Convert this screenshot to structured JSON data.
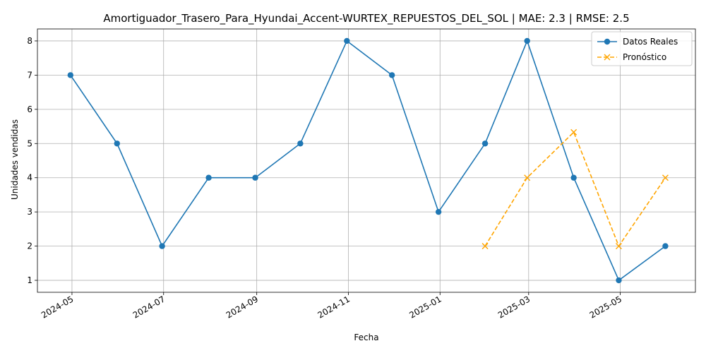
{
  "chart_data": {
    "type": "line",
    "title": "Amortiguador_Trasero_Para_Hyundai_Accent-WURTEX_REPUESTOS_DEL_SOL | MAE: 2.3 | RMSE: 2.5",
    "xlabel": "Fecha",
    "ylabel": "Unidades vendidas",
    "ylim": [
      0.65,
      8.35
    ],
    "xlim": [
      "2024-04-08",
      "2025-06-20"
    ],
    "grid": true,
    "legend_position": "top-right",
    "x_ticks": [
      "2024-05",
      "2024-07",
      "2024-09",
      "2024-11",
      "2025-01",
      "2025-03",
      "2025-05"
    ],
    "y_ticks": [
      1,
      2,
      3,
      4,
      5,
      6,
      7,
      8
    ],
    "series": [
      {
        "name": "Datos Reales",
        "color": "#1f77b4",
        "style": "solid",
        "marker": "circle",
        "x": [
          "2024-04-30",
          "2024-05-31",
          "2024-06-30",
          "2024-07-31",
          "2024-08-31",
          "2024-09-30",
          "2024-10-31",
          "2024-11-30",
          "2024-12-31",
          "2025-01-31",
          "2025-02-28",
          "2025-03-31",
          "2025-04-30",
          "2025-05-31"
        ],
        "values": [
          7,
          5,
          2,
          4,
          4,
          5,
          8,
          7,
          3,
          5,
          8,
          4,
          1,
          2
        ]
      },
      {
        "name": "Pronóstico",
        "color": "#ffa500",
        "style": "dashed",
        "marker": "x",
        "x": [
          "2025-01-31",
          "2025-02-28",
          "2025-03-31",
          "2025-04-30",
          "2025-05-31"
        ],
        "values": [
          2,
          4,
          5.33,
          2,
          4
        ]
      }
    ]
  }
}
